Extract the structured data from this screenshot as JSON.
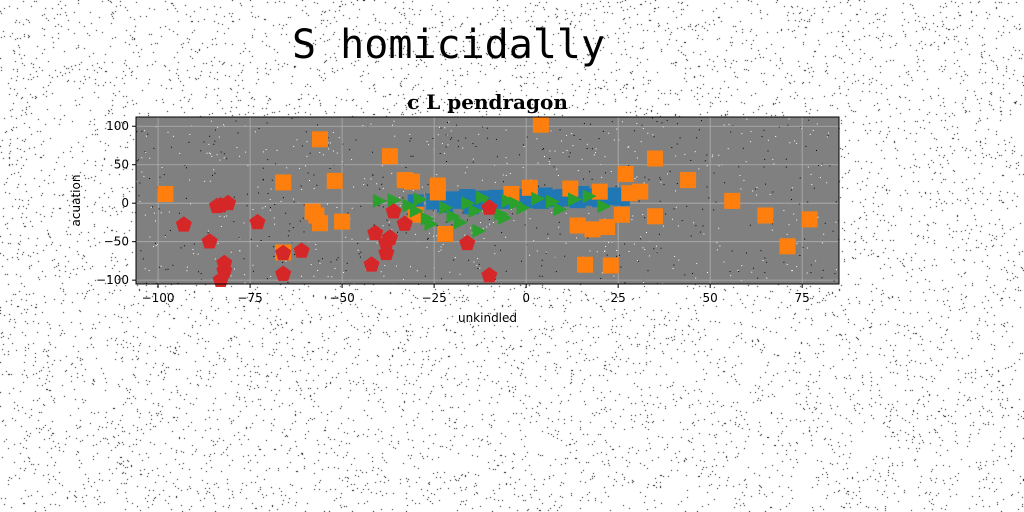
{
  "page": {
    "background": "#ffffff",
    "noise_color": "#000000"
  },
  "figure": {
    "suptitle": "S homicidally"
  },
  "chart_data": {
    "type": "scatter",
    "title": "c L pendragon",
    "xlabel": "unkindled",
    "ylabel": "acuation",
    "xlim": [
      -106,
      85
    ],
    "ylim": [
      -105,
      112
    ],
    "xticks": [
      -100,
      -75,
      -50,
      -25,
      0,
      25,
      50,
      75
    ],
    "yticks": [
      -100,
      -50,
      0,
      50,
      100
    ],
    "grid": true,
    "plot_background": "#808080",
    "grid_color": "#b0b0b0",
    "series": [
      {
        "color": "#1f77b4",
        "marker": "square",
        "points": [
          [
            -20,
            5
          ],
          [
            -18,
            3
          ],
          [
            -16,
            8
          ],
          [
            -14,
            2
          ],
          [
            -12,
            6
          ],
          [
            -10,
            4
          ],
          [
            -8,
            7
          ],
          [
            -6,
            3
          ],
          [
            -4,
            5
          ],
          [
            -2,
            8
          ],
          [
            0,
            4
          ],
          [
            2,
            6
          ],
          [
            4,
            3
          ],
          [
            6,
            7
          ],
          [
            8,
            5
          ],
          [
            10,
            8
          ],
          [
            12,
            6
          ],
          [
            14,
            4
          ],
          [
            16,
            7
          ],
          [
            18,
            9
          ],
          [
            20,
            5
          ],
          [
            22,
            8
          ],
          [
            24,
            10
          ],
          [
            26,
            7
          ],
          [
            -22,
            -2
          ],
          [
            -25,
            2
          ],
          [
            -30,
            1
          ],
          [
            -15,
            -4
          ],
          [
            5,
            10
          ],
          [
            15,
            12
          ]
        ]
      },
      {
        "color": "#ff7f0e",
        "marker": "square",
        "points": [
          [
            4,
            102
          ],
          [
            -56,
            83
          ],
          [
            -37,
            61
          ],
          [
            35,
            58
          ],
          [
            -66,
            27
          ],
          [
            -52,
            29
          ],
          [
            27,
            38
          ],
          [
            44,
            30
          ],
          [
            -98,
            12
          ],
          [
            -31,
            28
          ],
          [
            -33,
            30
          ],
          [
            -24,
            23
          ],
          [
            -24,
            14
          ],
          [
            -4,
            12
          ],
          [
            1,
            20
          ],
          [
            12,
            19
          ],
          [
            20,
            15
          ],
          [
            28,
            13
          ],
          [
            31,
            15
          ],
          [
            -58,
            -11
          ],
          [
            -57,
            -16
          ],
          [
            -56,
            -26
          ],
          [
            -50,
            -24
          ],
          [
            -22,
            -40
          ],
          [
            -30,
            -15
          ],
          [
            14,
            -29
          ],
          [
            18,
            -34
          ],
          [
            22,
            -31
          ],
          [
            26,
            -15
          ],
          [
            35,
            -17
          ],
          [
            56,
            3
          ],
          [
            65,
            -16
          ],
          [
            77,
            -21
          ],
          [
            71,
            -56
          ],
          [
            16,
            -80
          ],
          [
            23,
            -81
          ],
          [
            -66,
            -64
          ]
        ]
      },
      {
        "color": "#2ca02c",
        "marker": "triangle-right",
        "points": [
          [
            -36,
            4
          ],
          [
            -32,
            -3
          ],
          [
            -30,
            -10
          ],
          [
            -27,
            -20
          ],
          [
            -22,
            -6
          ],
          [
            -20,
            -17
          ],
          [
            -18,
            -25
          ],
          [
            -16,
            0
          ],
          [
            -14,
            -10
          ],
          [
            -12,
            7
          ],
          [
            -10,
            -2
          ],
          [
            -7,
            -14
          ],
          [
            -5,
            3
          ],
          [
            -3,
            0
          ],
          [
            -1,
            -6
          ],
          [
            3,
            6
          ],
          [
            7,
            2
          ],
          [
            9,
            -8
          ],
          [
            13,
            5
          ],
          [
            17,
            9
          ],
          [
            21,
            -4
          ],
          [
            -6,
            -19
          ],
          [
            -26,
            -27
          ],
          [
            -29,
            5
          ],
          [
            -40,
            3
          ],
          [
            -13,
            -36
          ]
        ]
      },
      {
        "color": "#d62728",
        "marker": "pentagon",
        "points": [
          [
            -93,
            -28
          ],
          [
            -86,
            -50
          ],
          [
            -84,
            -4
          ],
          [
            -83,
            -3
          ],
          [
            -81,
            0
          ],
          [
            -82,
            -78
          ],
          [
            -82,
            -88
          ],
          [
            -83,
            -100
          ],
          [
            -73,
            -25
          ],
          [
            -66,
            -65
          ],
          [
            -66,
            -92
          ],
          [
            -61,
            -62
          ],
          [
            -41,
            -39
          ],
          [
            -42,
            -80
          ],
          [
            -38,
            -65
          ],
          [
            -38,
            -52
          ],
          [
            -37,
            -45
          ],
          [
            -36,
            -11
          ],
          [
            -33,
            -27
          ],
          [
            -16,
            -52
          ],
          [
            -10,
            -94
          ],
          [
            -10,
            -6
          ]
        ]
      }
    ]
  }
}
